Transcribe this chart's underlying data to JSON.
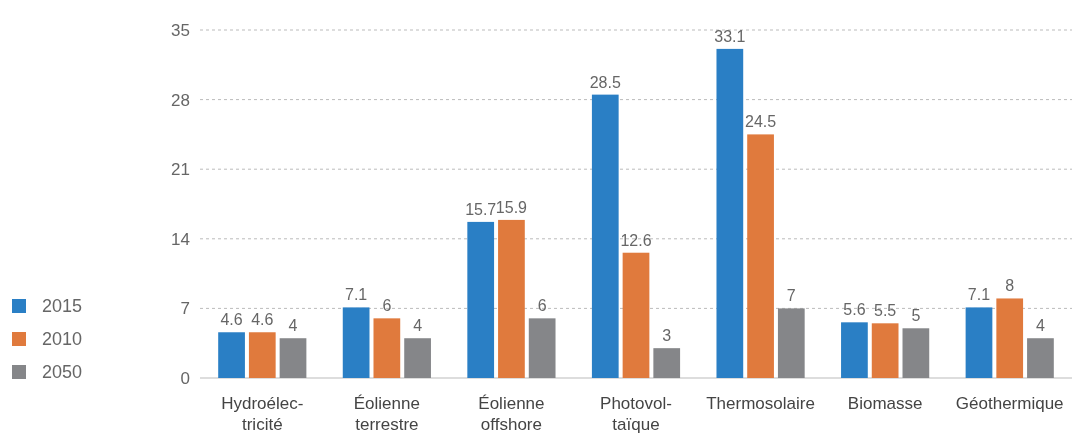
{
  "chart_data": {
    "type": "bar",
    "categories": [
      "Hydroélec-\ntricité",
      "Éolienne\nterrestre",
      "Éolienne\noffshore",
      "Photovol-\ntaïque",
      "Thermosolaire",
      "Biomasse",
      "Géothermique"
    ],
    "series": [
      {
        "name": "2015",
        "color": "#2a7fc5",
        "values": [
          4.6,
          7.1,
          15.7,
          28.5,
          33.1,
          5.6,
          7.1
        ]
      },
      {
        "name": "2010",
        "color": "#e07a3d",
        "values": [
          4.6,
          6,
          15.9,
          12.6,
          24.5,
          5.5,
          8
        ]
      },
      {
        "name": "2050",
        "color": "#858689",
        "values": [
          4,
          4,
          6,
          3,
          7,
          5,
          4
        ]
      }
    ],
    "ylim": [
      0,
      35
    ],
    "yticks": [
      0,
      7,
      14,
      21,
      28,
      35
    ],
    "grid": "y",
    "legend": "bottom left",
    "data_labels": true
  }
}
